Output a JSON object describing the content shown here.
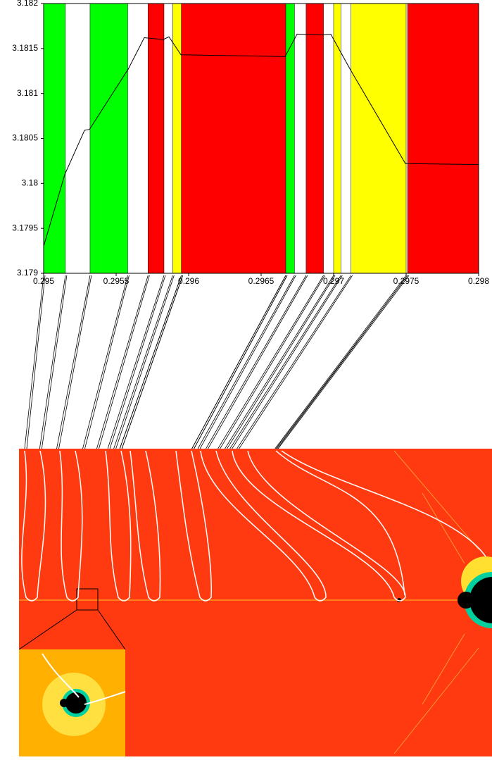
{
  "chart_data": {
    "type": "line",
    "x": [
      0.295,
      0.295146,
      0.295282,
      0.295316,
      0.295583,
      0.295694,
      0.295825,
      0.295864,
      0.295947,
      0.296665,
      0.296748,
      0.296932,
      0.29698,
      0.297117,
      0.297495,
      0.298
    ],
    "values": [
      3.1793,
      3.1801,
      3.18059,
      3.1806,
      3.18127,
      3.18162,
      3.1816,
      3.18163,
      3.18143,
      3.18141,
      3.18166,
      3.18165,
      3.18166,
      3.18126,
      3.18022,
      3.18021
    ],
    "color": "#000000",
    "bands": [
      {
        "xmin": 0.295,
        "xmax": 0.29515,
        "color": "#00ff00"
      },
      {
        "xmin": 0.29532,
        "xmax": 0.29558,
        "color": "#00ff00"
      },
      {
        "xmin": 0.29572,
        "xmax": 0.29583,
        "color": "#ff0000"
      },
      {
        "xmin": 0.29589,
        "xmax": 0.29595,
        "color": "#ffff00"
      },
      {
        "xmin": 0.29595,
        "xmax": 0.29667,
        "color": "#ff0000"
      },
      {
        "xmin": 0.29667,
        "xmax": 0.29673,
        "color": "#00ff00"
      },
      {
        "xmin": 0.29681,
        "xmax": 0.29693,
        "color": "#ff0000"
      },
      {
        "xmin": 0.297,
        "xmax": 0.29705,
        "color": "#ffff00"
      },
      {
        "xmin": 0.29712,
        "xmax": 0.2975,
        "color": "#ffff00"
      },
      {
        "xmin": 0.29751,
        "xmax": 0.298,
        "color": "#ff0000"
      }
    ],
    "xlim": [
      0.295,
      0.298
    ],
    "xticks": [
      0.295,
      0.2955,
      0.296,
      0.2965,
      0.297,
      0.2975,
      0.298
    ],
    "ylim": [
      3.179,
      3.182
    ],
    "yticks": [
      3.179,
      3.1795,
      3.18,
      3.1805,
      3.181,
      3.1815,
      3.182
    ]
  }
}
